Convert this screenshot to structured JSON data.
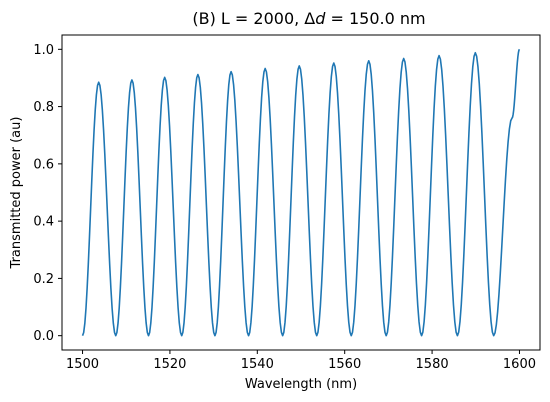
{
  "chart_data": {
    "type": "line",
    "title_prefix": "(B) L = 2000, Δ",
    "title_var": "d",
    "title_suffix": " = 150.0 nm",
    "xlabel": "Wavelength (nm)",
    "ylabel": "Transmitted power (au)",
    "xlim": [
      1495.3,
      1604.7
    ],
    "ylim": [
      -0.05,
      1.05
    ],
    "x_ticks": [
      1500,
      1520,
      1540,
      1560,
      1580,
      1600
    ],
    "y_ticks": [
      0.0,
      0.2,
      0.4,
      0.6,
      0.8,
      1.0
    ],
    "x_tick_labels": [
      "1500",
      "1520",
      "1540",
      "1560",
      "1580",
      "1600"
    ],
    "y_tick_labels": [
      "0.0",
      "0.2",
      "0.4",
      "0.6",
      "0.8",
      "1.0"
    ],
    "grid": false,
    "series": [
      {
        "color": "#1f77b4",
        "x": [
          1500,
          1503.7,
          1507.6,
          1511.3,
          1515.1,
          1518.8,
          1522.7,
          1526.4,
          1530.3,
          1534.0,
          1538.0,
          1541.8,
          1545.8,
          1549.6,
          1553.6,
          1557.5,
          1561.5,
          1565.5,
          1569.5,
          1573.5,
          1577.6,
          1581.6,
          1585.8,
          1589.9,
          1594.1,
          1598.3,
          1600
        ],
        "y": [
          0.0,
          0.885,
          0.0,
          0.893,
          0.0,
          0.902,
          0.0,
          0.912,
          0.0,
          0.922,
          0.0,
          0.933,
          0.0,
          0.942,
          0.0,
          0.952,
          0.0,
          0.96,
          0.0,
          0.968,
          0.0,
          0.978,
          0.0,
          0.988,
          0.0,
          0.76,
          1.0
        ]
      }
    ]
  }
}
